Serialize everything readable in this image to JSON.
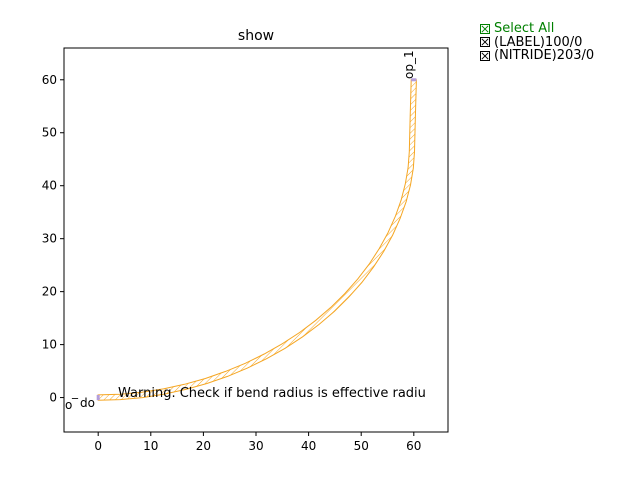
{
  "figure": {
    "title": "show",
    "warning_text": "Warning. Check if bend radius is effective radiu",
    "port_labels": [
      "op_1",
      "o",
      "do",
      "_"
    ],
    "x_ticks": [
      0,
      10,
      20,
      30,
      40,
      50,
      60
    ],
    "y_ticks": [
      0,
      10,
      20,
      30,
      40,
      50,
      60
    ],
    "x_range": [
      -6.5,
      66.5
    ],
    "y_range": [
      -6.5,
      66
    ],
    "bend_radius": 60,
    "waveguide_width": 1,
    "waveguide_color": "#f5a623",
    "port_color": "#b39ddb"
  },
  "layer_panel": {
    "select_all_label": "Select All",
    "items": [
      {
        "label": "(LABEL)100/0",
        "checked": true
      },
      {
        "label": "(NITRIDE)203/0",
        "checked": true
      }
    ],
    "select_all_color": "#008000"
  },
  "chart_data": {
    "type": "line",
    "title": "show",
    "xlabel": "",
    "ylabel": "",
    "xlim": [
      -6.5,
      66.5
    ],
    "ylim": [
      -6.5,
      66
    ],
    "grid": false,
    "series": [
      {
        "x": [
          0,
          4.18,
          8.36,
          12.48,
          16.53,
          20.52,
          24.4,
          28.17,
          31.79,
          35.27,
          38.57,
          41.68,
          44.58,
          47.27,
          49.72,
          51.92,
          53.86,
          55.54,
          56.94,
          58.06,
          58.88,
          59.41,
          59.64,
          59.81,
          60
        ],
        "y": [
          0,
          0.12,
          0.5,
          1.15,
          2.02,
          3.13,
          4.47,
          6.02,
          7.78,
          9.74,
          11.88,
          14.2,
          16.68,
          19.3,
          22.05,
          24.91,
          27.88,
          30.91,
          34.0,
          37.12,
          40.24,
          43.35,
          46.42,
          53.21,
          60
        ]
      }
    ]
  }
}
